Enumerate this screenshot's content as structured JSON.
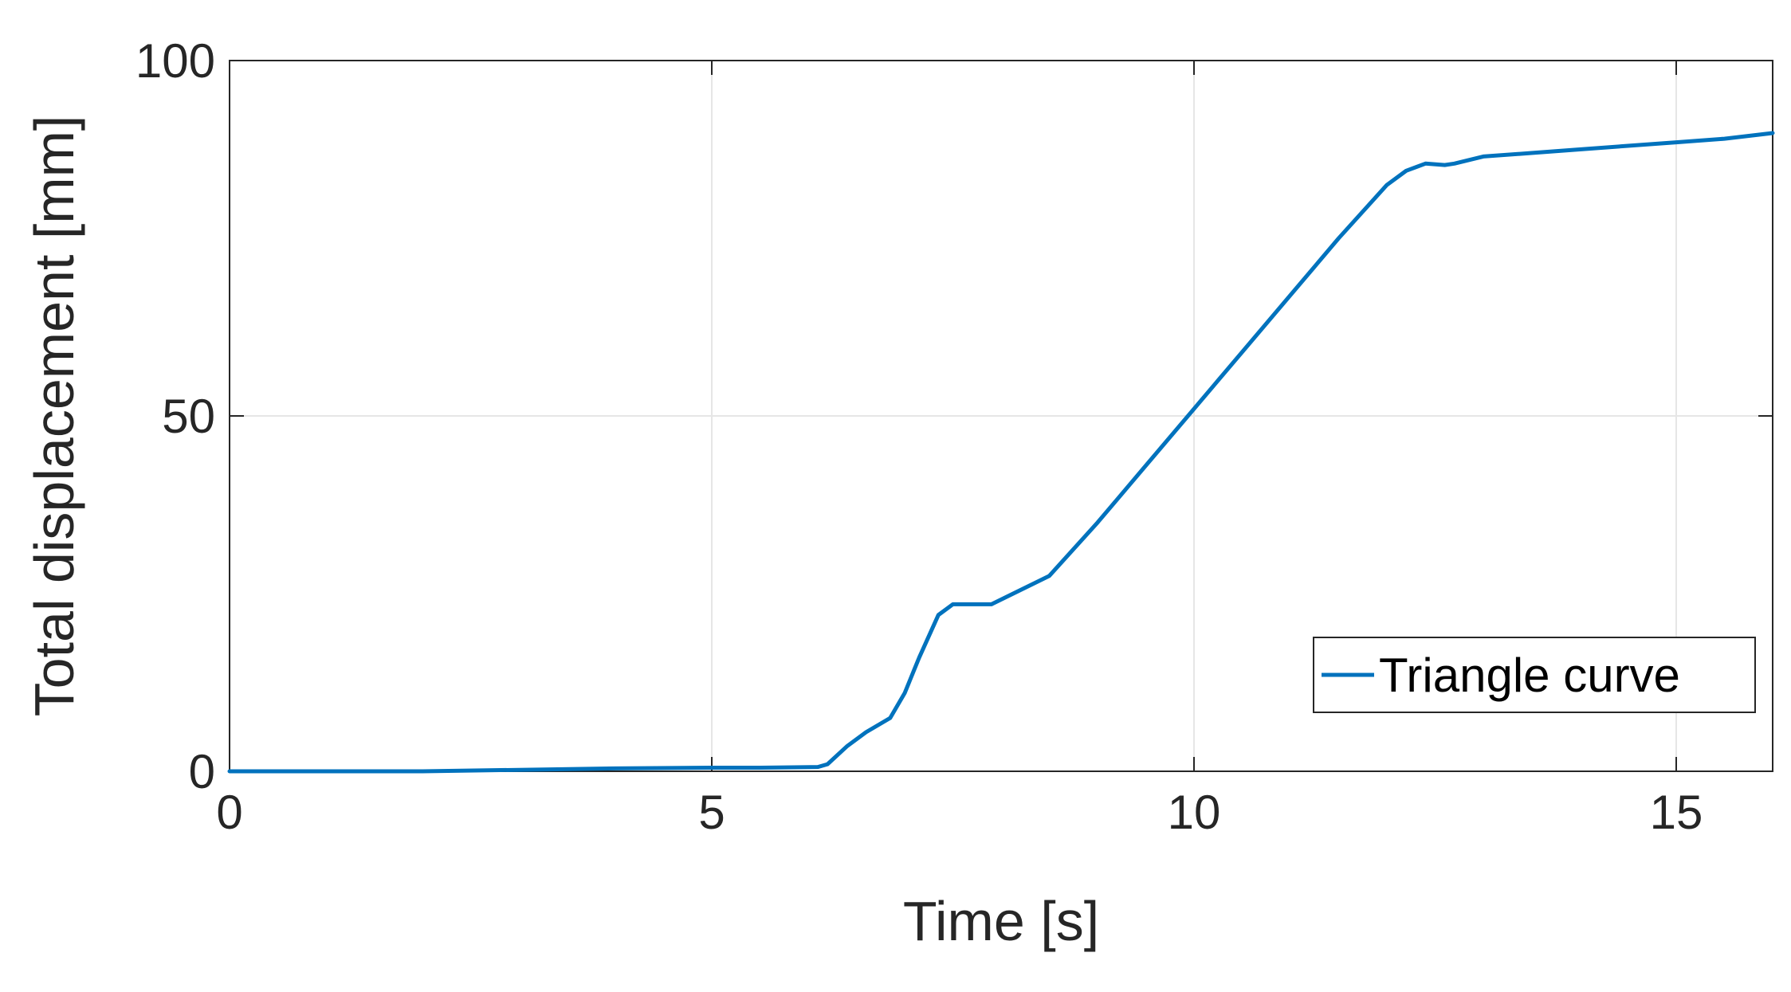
{
  "chart_data": {
    "type": "line",
    "title": "",
    "xlabel": "Time [s]",
    "ylabel": "Total displacement [mm]",
    "xlim": [
      0,
      16
    ],
    "ylim": [
      0,
      100
    ],
    "xticks": [
      0,
      5,
      10,
      15
    ],
    "yticks": [
      0,
      50,
      100
    ],
    "xtick_labels": [
      "0",
      "5",
      "10",
      "15"
    ],
    "ytick_labels": [
      "0",
      "50",
      "100"
    ],
    "grid": true,
    "legend_position": "lower-right",
    "colors": {
      "series": "#0072BD",
      "grid": "#e6e6e6",
      "axis": "#262626"
    },
    "series": [
      {
        "name": "Triangle curve",
        "x": [
          0,
          1,
          2,
          3,
          4,
          5,
          5.5,
          6.1,
          6.2,
          6.4,
          6.6,
          6.85,
          7.0,
          7.15,
          7.35,
          7.5,
          7.9,
          8.5,
          9.0,
          9.5,
          10.0,
          10.5,
          11.0,
          11.5,
          12.0,
          12.2,
          12.4,
          12.6,
          12.7,
          13.0,
          13.5,
          14.0,
          14.5,
          15.0,
          15.5,
          16.0
        ],
        "y": [
          0,
          0,
          0,
          0.2,
          0.4,
          0.5,
          0.5,
          0.6,
          1.0,
          3.5,
          5.5,
          7.5,
          11.0,
          16.0,
          22.0,
          23.5,
          23.5,
          27.5,
          35.0,
          43.0,
          51.0,
          59.0,
          67.0,
          75.0,
          82.5,
          84.5,
          85.5,
          85.3,
          85.5,
          86.5,
          87.0,
          87.5,
          88.0,
          88.5,
          89.0,
          89.8
        ]
      }
    ]
  }
}
